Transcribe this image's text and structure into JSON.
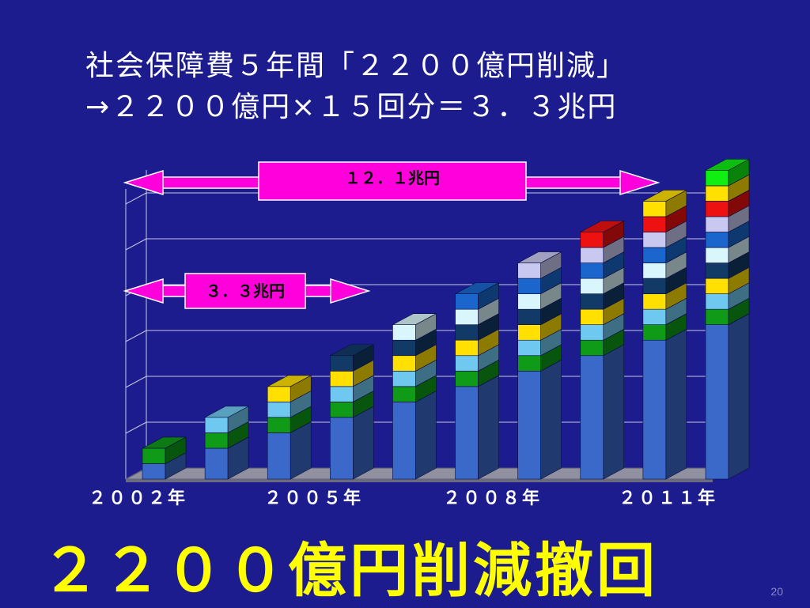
{
  "slide": {
    "title_line1": "社会保障費５年間「２２００億円削減」",
    "title_line2": "→２２００億円×１５回分＝３．３兆円",
    "callout": "２２００億円削減撤回",
    "page_number": "20"
  },
  "chart_data": {
    "type": "bar",
    "stacked": true,
    "categories": [
      "2002",
      "2003",
      "2004",
      "2005",
      "2006",
      "2007",
      "2008",
      "2009",
      "2010",
      "2011"
    ],
    "tick_labels": [
      "２００２年",
      "２００５年",
      "２００８年",
      "２０１１年"
    ],
    "tick_indices": [
      0,
      3,
      6,
      9
    ],
    "segments": [
      {
        "color": "#3b69c9",
        "values": [
          0.22,
          0.44,
          0.66,
          0.88,
          1.1,
          1.32,
          1.54,
          1.76,
          1.98,
          2.2
        ]
      },
      {
        "color": "#0f9a18",
        "values": [
          0.22,
          0.22,
          0.22,
          0.22,
          0.22,
          0.22,
          0.22,
          0.22,
          0.22,
          0.22
        ]
      },
      {
        "color": "#6fc8ef",
        "values": [
          0,
          0.22,
          0.22,
          0.22,
          0.22,
          0.22,
          0.22,
          0.22,
          0.22,
          0.22
        ]
      },
      {
        "color": "#ffe000",
        "values": [
          0,
          0,
          0.22,
          0.22,
          0.22,
          0.22,
          0.22,
          0.22,
          0.22,
          0.22
        ]
      },
      {
        "color": "#123a66",
        "values": [
          0,
          0,
          0,
          0.22,
          0.22,
          0.22,
          0.22,
          0.22,
          0.22,
          0.22
        ]
      },
      {
        "color": "#d8f6fb",
        "values": [
          0,
          0,
          0,
          0,
          0.22,
          0.22,
          0.22,
          0.22,
          0.22,
          0.22
        ]
      },
      {
        "color": "#1a66cc",
        "values": [
          0,
          0,
          0,
          0,
          0,
          0.22,
          0.22,
          0.22,
          0.22,
          0.22
        ]
      },
      {
        "color": "#c8c8f0",
        "values": [
          0,
          0,
          0,
          0,
          0,
          0,
          0.22,
          0.22,
          0.22,
          0.22
        ]
      },
      {
        "color": "#ee1111",
        "values": [
          0,
          0,
          0,
          0,
          0,
          0,
          0,
          0.22,
          0.22,
          0.22
        ]
      },
      {
        "color": "#ffe000",
        "values": [
          0,
          0,
          0,
          0,
          0,
          0,
          0,
          0,
          0.22,
          0.22
        ]
      },
      {
        "color": "#11ee11",
        "values": [
          0,
          0,
          0,
          0,
          0,
          0,
          0,
          0,
          0,
          0.22
        ]
      }
    ],
    "ylim": [
      0,
      4.1
    ],
    "grid": true,
    "annotations": [
      {
        "label": "１２．１兆円",
        "value": 12.1,
        "box_color": "#ff00dd",
        "text_color": "#000000",
        "span_categories": [
          0,
          9
        ]
      },
      {
        "label": "３．３兆円",
        "value": 3.3,
        "box_color": "#ff00dd",
        "text_color": "#000000",
        "span_categories": [
          0,
          3
        ]
      }
    ],
    "colors": {
      "background": "#1c1c8f",
      "grid": "#c8c8e0",
      "floor": "#9090a0",
      "tick_label": "#ffffff"
    }
  }
}
